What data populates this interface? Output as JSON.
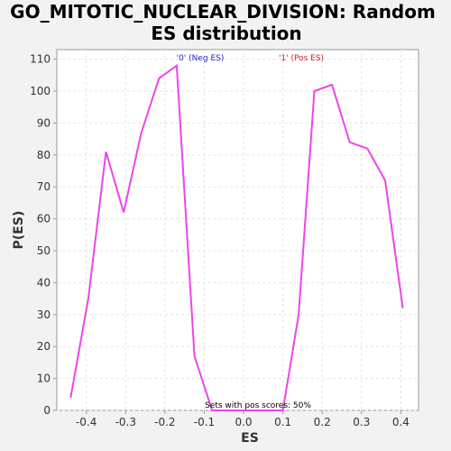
{
  "chart_data": {
    "type": "line",
    "title_line1": "GO_MITOTIC_NUCLEAR_DIVISION: Random",
    "title_line2": "ES distribution",
    "xlabel": "ES",
    "ylabel": "P(ES)",
    "xlim": [
      -0.475,
      0.445
    ],
    "ylim": [
      0,
      113
    ],
    "x_ticks": [
      -0.4,
      -0.3,
      -0.2,
      -0.1,
      0.0,
      0.1,
      0.2,
      0.3,
      0.4
    ],
    "x_tick_labels": [
      "-0.4",
      "-0.3",
      "-0.2",
      "-0.1",
      "0.0",
      "0.1",
      "0.2",
      "0.3",
      "0.4"
    ],
    "y_ticks": [
      0,
      10,
      20,
      30,
      40,
      50,
      60,
      70,
      80,
      90,
      100,
      110
    ],
    "y_tick_labels": [
      "0",
      "10",
      "20",
      "30",
      "40",
      "50",
      "60",
      "70",
      "80",
      "90",
      "100",
      "110"
    ],
    "grid": true,
    "series": [
      {
        "color": "#ee44ee",
        "x": [
          -0.44,
          -0.395,
          -0.35,
          -0.305,
          -0.26,
          -0.215,
          -0.17,
          -0.125,
          -0.08,
          -0.035,
          0.01,
          0.055,
          0.1,
          0.14,
          0.18,
          0.225,
          0.27,
          0.315,
          0.36,
          0.405
        ],
        "y": [
          4,
          35,
          81,
          62,
          87,
          104,
          108,
          17,
          0,
          0,
          0,
          0,
          0,
          30,
          100,
          102,
          84,
          82,
          72,
          32
        ]
      }
    ],
    "annotations": {
      "neg": {
        "text": "'0' (Neg ES)",
        "color": "#2222cc"
      },
      "pos": {
        "text": "'1' (Pos ES)",
        "color": "#cc2222"
      },
      "footer": {
        "text": "Sets with pos scores: 50%",
        "color": "#000000"
      }
    }
  }
}
